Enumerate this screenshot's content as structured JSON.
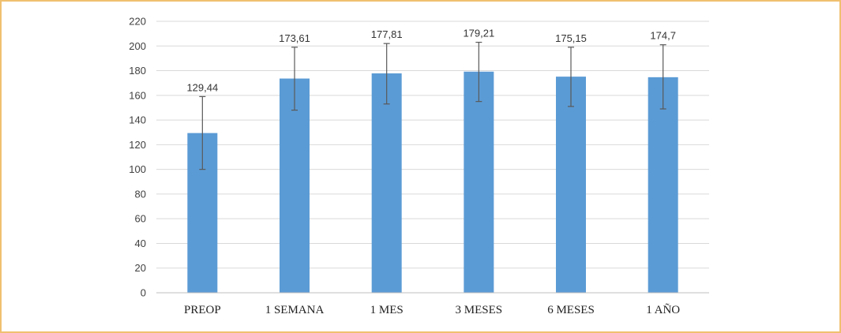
{
  "chart_data": {
    "type": "bar",
    "title": "",
    "xlabel": "",
    "ylabel": "",
    "categories": [
      "PREOP",
      "1 SEMANA",
      "1 MES",
      "3 MESES",
      "6 MESES",
      "1 AÑO"
    ],
    "values": [
      129.44,
      173.61,
      177.81,
      179.21,
      175.15,
      174.7
    ],
    "value_labels": [
      "129,44",
      "173,61",
      "177,81",
      "179,21",
      "175,15",
      "174,7"
    ],
    "error_low": [
      100,
      148,
      153,
      155,
      151,
      149
    ],
    "error_high": [
      159,
      199,
      202,
      203,
      199,
      201
    ],
    "ylim": [
      0,
      220
    ],
    "yticks": [
      0,
      20,
      40,
      60,
      80,
      100,
      120,
      140,
      160,
      180,
      200,
      220
    ],
    "grid": true,
    "legend": "none",
    "bar_color": "#5b9bd5",
    "error_bar_color": "#595959",
    "grid_color": "#d9d9d9",
    "frame_color": "#f0c070"
  }
}
